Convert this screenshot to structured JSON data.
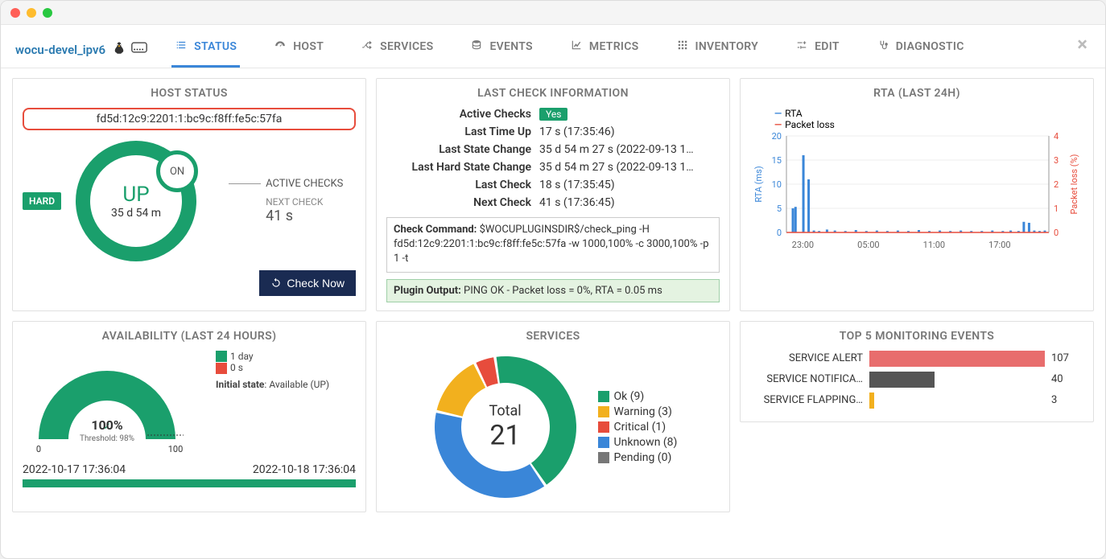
{
  "window": {
    "dot_colors": [
      "#ff5f57",
      "#febc2e",
      "#28c840"
    ]
  },
  "header": {
    "host_name": "wocu-devel_ipv6"
  },
  "tabs": [
    {
      "label": "STATUS",
      "active": true,
      "icon": "list"
    },
    {
      "label": "HOST",
      "active": false,
      "icon": "gauge"
    },
    {
      "label": "SERVICES",
      "active": false,
      "icon": "shuffle"
    },
    {
      "label": "EVENTS",
      "active": false,
      "icon": "db"
    },
    {
      "label": "METRICS",
      "active": false,
      "icon": "chart"
    },
    {
      "label": "INVENTORY",
      "active": false,
      "icon": "grid"
    },
    {
      "label": "EDIT",
      "active": false,
      "icon": "sliders"
    },
    {
      "label": "DIAGNOSTIC",
      "active": false,
      "icon": "steth"
    }
  ],
  "host_status": {
    "title": "HOST STATUS",
    "address": "fd5d:12c9:2201:1:bc9c:f8ff:fe5c:57fa",
    "hard": "HARD",
    "state": "UP",
    "duration": "35 d 54 m",
    "active_on": "ON",
    "active_checks_label": "ACTIVE CHECKS",
    "next_check_label": "NEXT CHECK",
    "next_check_value": "41 s",
    "check_now": "Check Now",
    "colors": {
      "ring": "#1a9f6c",
      "hard_bg": "#1a9f6c",
      "pill_border": "#e74c3c",
      "btn_bg": "#1a2b52"
    }
  },
  "last_check": {
    "title": "LAST CHECK INFORMATION",
    "rows": [
      {
        "k": "Active Checks",
        "v": "",
        "badge": "Yes"
      },
      {
        "k": "Last Time Up",
        "v": "17 s (17:35:46)"
      },
      {
        "k": "Last State Change",
        "v": "35 d 54 m 27 s (2022-09-13 1…"
      },
      {
        "k": "Last Hard State Change",
        "v": "35 d 54 m 27 s (2022-09-13 1…"
      },
      {
        "k": "Last Check",
        "v": "18 s (17:35:45)"
      },
      {
        "k": "Next Check",
        "v": "41 s (17:36:45)"
      }
    ],
    "cmd_label": "Check Command:",
    "cmd": "$WOCUPLUGINSDIR$/check_ping -H fd5d:12c9:2201:1:bc9c:f8ff:fe5c:57fa -w 1000,100% -c 3000,100% -p 1 -t",
    "plugin_label": "Plugin Output:",
    "plugin": "PING OK - Packet loss = 0%, RTA = 0.05 ms",
    "colors": {
      "yes_bg": "#1a9f6c",
      "plugin_bg": "#e4f3e1",
      "plugin_border": "#9fd0a8"
    }
  },
  "rta_chart": {
    "title": "RTA (LAST 24H)",
    "type": "line-bar-dual-axis",
    "left_axis": {
      "label": "RTA (ms)",
      "color": "#3a86d8",
      "min": 0,
      "max": 20,
      "ticks": [
        0,
        5,
        10,
        15,
        20
      ]
    },
    "right_axis": {
      "label": "Packet loss (%)",
      "color": "#e74c3c",
      "min": 0,
      "max": 4,
      "ticks": [
        0,
        1,
        2,
        3,
        4
      ]
    },
    "x_ticks": [
      "23:00",
      "05:00",
      "11:00",
      "17:00"
    ],
    "legend": [
      {
        "label": "RTA",
        "color": "#3a86d8"
      },
      {
        "label": "Packet loss",
        "color": "#e74c3c"
      }
    ],
    "background": "#ffffff",
    "grid_color": "#eeeeee",
    "bars": [
      {
        "x": 0.02,
        "h": 5
      },
      {
        "x": 0.03,
        "h": 5.3
      },
      {
        "x": 0.06,
        "h": 16
      },
      {
        "x": 0.08,
        "h": 11
      },
      {
        "x": 0.1,
        "h": 0.4
      },
      {
        "x": 0.12,
        "h": 0.3
      },
      {
        "x": 0.15,
        "h": 0.6
      },
      {
        "x": 0.18,
        "h": 0.4
      },
      {
        "x": 0.22,
        "h": 0.3
      },
      {
        "x": 0.26,
        "h": 0.5
      },
      {
        "x": 0.3,
        "h": 0.3
      },
      {
        "x": 0.34,
        "h": 0.4
      },
      {
        "x": 0.38,
        "h": 0.3
      },
      {
        "x": 0.42,
        "h": 0.4
      },
      {
        "x": 0.46,
        "h": 0.3
      },
      {
        "x": 0.5,
        "h": 0.5
      },
      {
        "x": 0.54,
        "h": 0.3
      },
      {
        "x": 0.58,
        "h": 0.4
      },
      {
        "x": 0.62,
        "h": 0.3
      },
      {
        "x": 0.66,
        "h": 0.4
      },
      {
        "x": 0.7,
        "h": 0.3
      },
      {
        "x": 0.74,
        "h": 0.3
      },
      {
        "x": 0.78,
        "h": 0.4
      },
      {
        "x": 0.82,
        "h": 0.3
      },
      {
        "x": 0.85,
        "h": 0.4
      },
      {
        "x": 0.88,
        "h": 0.3
      },
      {
        "x": 0.9,
        "h": 2.2
      },
      {
        "x": 0.92,
        "h": 2.0
      },
      {
        "x": 0.94,
        "h": 0.4
      },
      {
        "x": 0.96,
        "h": 0.3
      },
      {
        "x": 0.98,
        "h": 0.4
      }
    ],
    "loss_line": [
      {
        "x": 0.0,
        "y": 0
      },
      {
        "x": 1.0,
        "y": 0
      }
    ]
  },
  "availability": {
    "title": "AVAILABILITY (LAST 24 HOURS)",
    "type": "gauge",
    "percent_label": "100%",
    "percent": 100,
    "threshold_label": "Threshold: 98%",
    "scale_min": "0",
    "scale_max": "100",
    "color_ok": "#1a9f6c",
    "color_bad": "#e74c3c",
    "legend": [
      {
        "color": "#1a9f6c",
        "label": "1 day"
      },
      {
        "color": "#e74c3c",
        "label": "0 s"
      }
    ],
    "initial_state_label": "Initial state",
    "initial_state_value": "Available (UP)",
    "start": "2022-10-17 17:36:04",
    "end": "2022-10-18 17:36:04"
  },
  "services": {
    "title": "SERVICES",
    "type": "donut",
    "total_label": "Total",
    "total": 21,
    "slices": [
      {
        "label": "Ok",
        "count": 9,
        "color": "#1a9f6c"
      },
      {
        "label": "Warning",
        "count": 3,
        "color": "#f2b01e"
      },
      {
        "label": "Critical",
        "count": 1,
        "color": "#e74c3c"
      },
      {
        "label": "Unknown",
        "count": 8,
        "color": "#3a86d8"
      },
      {
        "label": "Pending",
        "count": 0,
        "color": "#777777"
      }
    ]
  },
  "events": {
    "title": "TOP 5 MONITORING EVENTS",
    "type": "bar-horizontal",
    "max": 107,
    "rows": [
      {
        "label": "SERVICE ALERT",
        "value": 107,
        "color": "#e86d6d"
      },
      {
        "label": "SERVICE NOTIFICA…",
        "value": 40,
        "color": "#555555"
      },
      {
        "label": "SERVICE FLAPPING…",
        "value": 3,
        "color": "#f2b01e"
      }
    ]
  }
}
